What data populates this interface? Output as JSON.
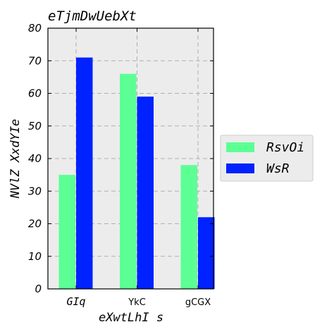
{
  "chart_data": {
    "type": "bar",
    "title": "eTjmDwUebXt",
    "xlabel": "eXwtLhI s",
    "ylabel": "NVlZ XxdYIe",
    "categories": [
      "GIq",
      "YkC",
      "gCGX"
    ],
    "series": [
      {
        "name": "RsvOi",
        "color": "#5cff94",
        "values": [
          35,
          66,
          38
        ]
      },
      {
        "name": "WsR",
        "color": "#0022ff",
        "values": [
          71,
          59,
          22
        ]
      }
    ],
    "ylim": [
      0,
      80
    ],
    "yticks": [
      0,
      10,
      20,
      30,
      40,
      50,
      60,
      70,
      80
    ],
    "grid": true,
    "legend_position": "right"
  }
}
